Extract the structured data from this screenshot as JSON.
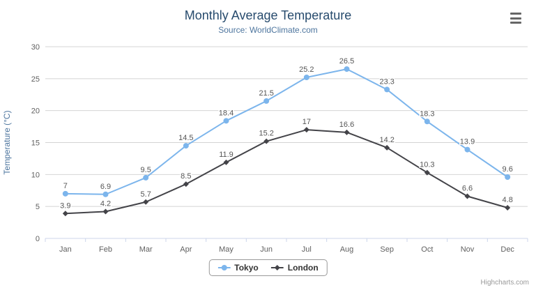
{
  "credit": "Highcharts.com",
  "icons": {
    "menu": "hamburger-menu-icon",
    "tokyo_marker": "circle-marker-icon",
    "london_marker": "diamond-marker-icon"
  },
  "chart_data": {
    "type": "line",
    "title": "Monthly Average Temperature",
    "subtitle": "Source: WorldClimate.com",
    "categories": [
      "Jan",
      "Feb",
      "Mar",
      "Apr",
      "May",
      "Jun",
      "Jul",
      "Aug",
      "Sep",
      "Oct",
      "Nov",
      "Dec"
    ],
    "series": [
      {
        "name": "Tokyo",
        "color": "#7cb5ec",
        "marker": "circle",
        "values": [
          7,
          6.9,
          9.5,
          14.5,
          18.4,
          21.5,
          25.2,
          26.5,
          23.3,
          18.3,
          13.9,
          9.6
        ]
      },
      {
        "name": "London",
        "color": "#434348",
        "marker": "diamond",
        "values": [
          3.9,
          4.2,
          5.7,
          8.5,
          11.9,
          15.2,
          17,
          16.6,
          14.2,
          10.3,
          6.6,
          4.8
        ]
      }
    ],
    "xlabel": "",
    "ylabel": "Temperature (°C)",
    "ylim": [
      0,
      30
    ],
    "ytick_interval": 5,
    "grid": true,
    "data_labels": true,
    "legend_position": "bottom"
  },
  "colors": {
    "title": "#274b6d",
    "subtitle": "#4d759e",
    "axis_title": "#4d759e",
    "axis_labels": "#606060",
    "grid": "#d4d4d4",
    "axis_line": "#ccd6eb",
    "data_label": "#555555",
    "legend_border": "#999999",
    "credit": "#999999"
  }
}
